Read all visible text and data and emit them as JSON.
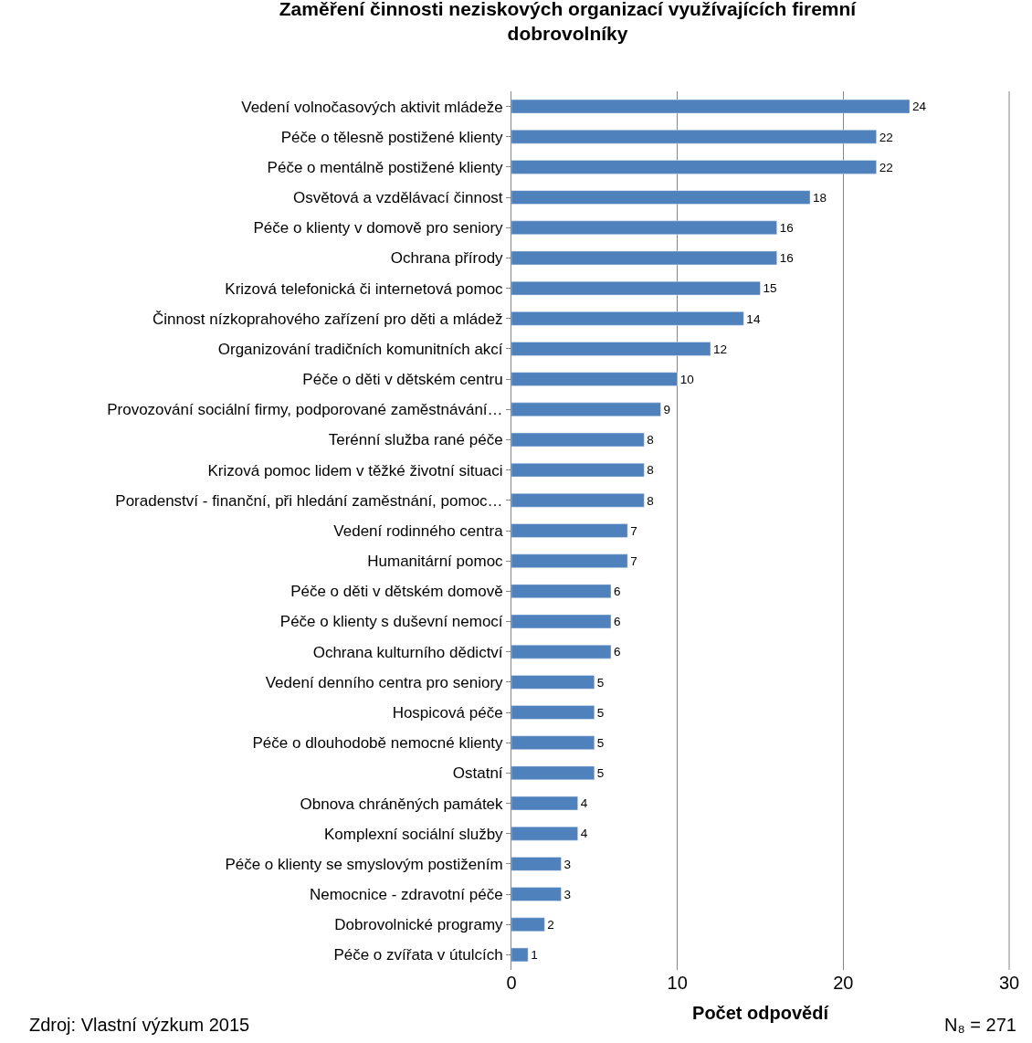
{
  "chart_data": {
    "type": "bar",
    "orientation": "horizontal",
    "title": "Zaměření činnosti neziskových organizací využívajících firemní dobrovolníky",
    "xlabel": "Počet odpovědí",
    "categories": [
      "Vedení volnočasových aktivit mládeže",
      "Péče o tělesně postižené klienty",
      "Péče o mentálně postižené klienty",
      "Osvětová a vzdělávací činnost",
      "Péče o klienty v domově pro seniory",
      "Ochrana přírody",
      "Krizová telefonická či internetová pomoc",
      "Činnost nízkoprahového zařízení pro děti a mládež",
      "Organizování tradičních komunitních akcí",
      "Péče o děti v dětském centru",
      "Provozování sociální firmy, podporované zaměstnávání…",
      "Terénní služba rané péče",
      "Krizová pomoc lidem v těžké životní situaci",
      "Poradenství - finanční, při hledání zaměstnání, pomoc…",
      "Vedení rodinného centra",
      "Humanitární pomoc",
      "Péče o děti v dětském domově",
      "Péče o klienty s duševní nemocí",
      "Ochrana kulturního dědictví",
      "Vedení denního centra pro seniory",
      "Hospicová péče",
      "Péče o dlouhodobě nemocné klienty",
      "Ostatní",
      "Obnova chráněných památek",
      "Komplexní sociální služby",
      "Péče o klienty se smyslovým postižením",
      "Nemocnice - zdravotní péče",
      "Dobrovolnické programy",
      "Péče o zvířata v útulcích"
    ],
    "values": [
      24,
      22,
      22,
      18,
      16,
      16,
      15,
      14,
      12,
      10,
      9,
      8,
      8,
      8,
      7,
      7,
      6,
      6,
      6,
      5,
      5,
      5,
      5,
      4,
      4,
      3,
      3,
      2,
      1
    ],
    "color": "#4f81bd",
    "xlim": [
      0,
      30
    ],
    "xticks": [
      0,
      10,
      20,
      30
    ],
    "grid": "x",
    "data_labels": true,
    "legend": false,
    "annotations": [
      "Zdroj: Vlastní výzkum 2015",
      "N₈ = 271"
    ]
  }
}
